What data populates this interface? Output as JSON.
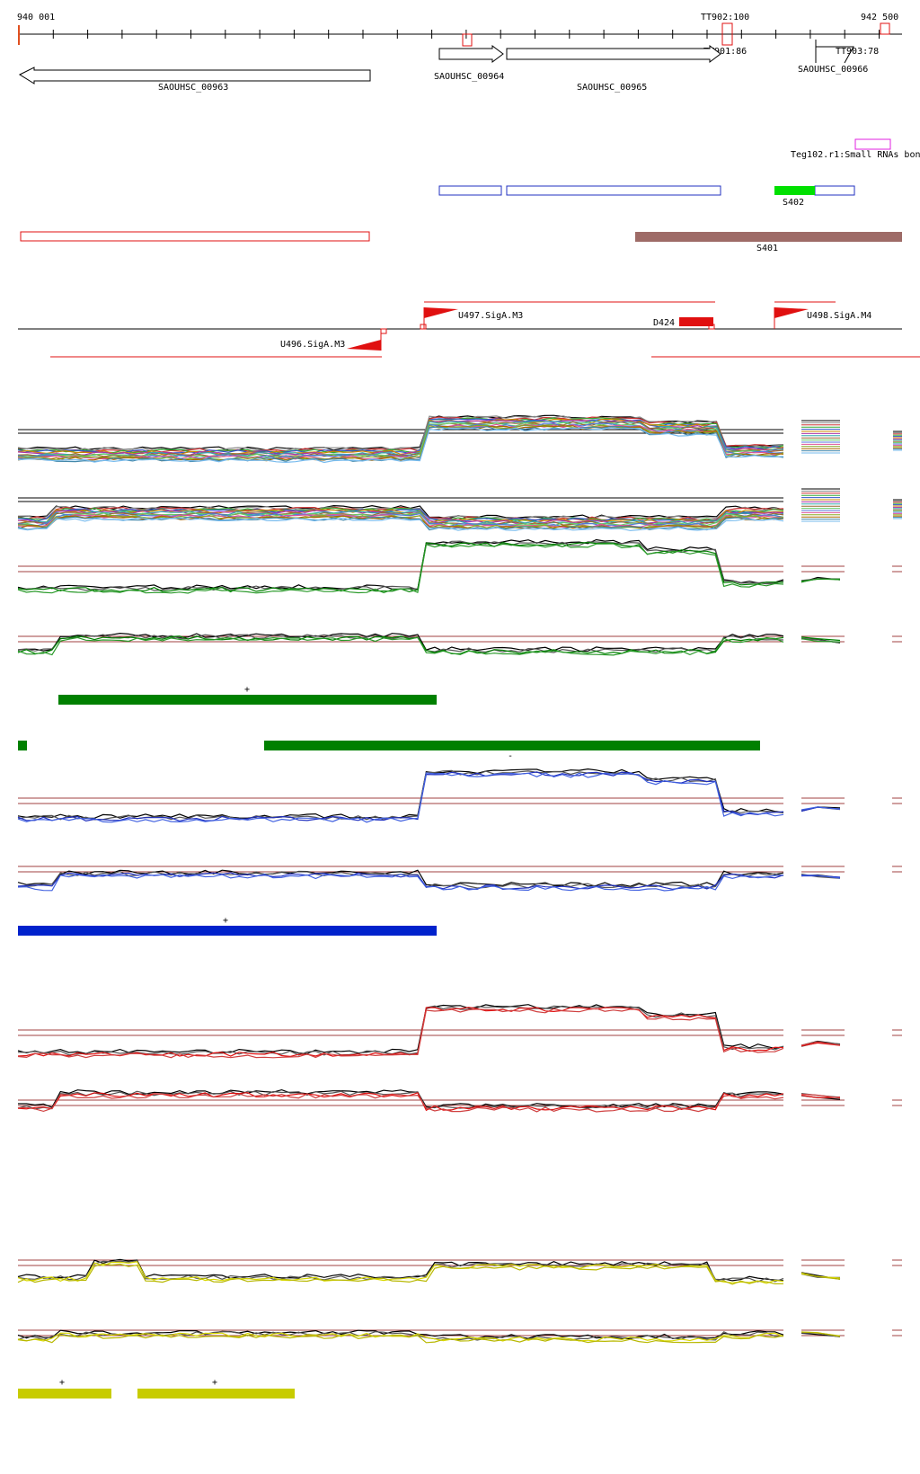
{
  "coordinates": {
    "start": "940 001",
    "end": "942 500"
  },
  "terminators": [
    {
      "label": "TT902:100"
    },
    {
      "label": "TT901:86"
    },
    {
      "label": "TT903:78"
    }
  ],
  "genes": [
    {
      "label": "SAOUHSC_00963",
      "strand": "-"
    },
    {
      "label": "SAOUHSC_00964",
      "strand": "+"
    },
    {
      "label": "SAOUHSC_00965",
      "strand": "+"
    },
    {
      "label": "SAOUHSC_00966",
      "strand": "+"
    }
  ],
  "small_rna": {
    "label": "Teg102.r1:Small RNAs bon"
  },
  "segments": [
    {
      "label": "S402",
      "color": "#00e000"
    },
    {
      "label": "S401",
      "color": "#9e6b67"
    }
  ],
  "promoters": [
    {
      "label": "U497.SigA.M3"
    },
    {
      "label": "D424"
    },
    {
      "label": "U498.SigA.M4"
    },
    {
      "label": "U496.SigA.M3"
    }
  ],
  "bar_signs": {
    "green_plus": "+",
    "green_minus": "-",
    "blue_plus": "+",
    "yellow_plus_1": "+",
    "yellow_plus_2": "+"
  },
  "colors": {
    "green_bar": "#008000",
    "blue_bar": "#0022cc",
    "yellow_bar": "#c8cc00",
    "red_outline": "#e01010",
    "blue_outline": "#2030c0",
    "magenta": "#e020e0",
    "threshold": "#a04040"
  }
}
